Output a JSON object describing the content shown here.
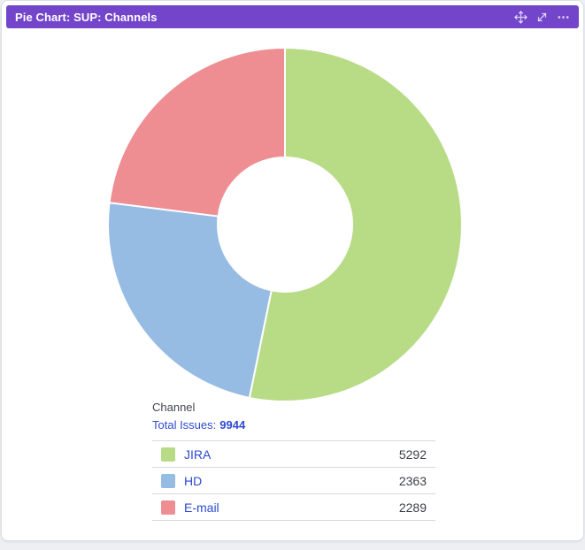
{
  "window": {
    "title": "Pie Chart: SUP: Channels"
  },
  "header": {
    "icons": [
      "move-icon",
      "expand-icon",
      "more-icon"
    ]
  },
  "colors": {
    "header_bg": "#7345cb",
    "link": "#2f49d1",
    "card_bg": "#ffffff",
    "page_bg": "#edeff3"
  },
  "summary": {
    "dimension_label": "Channel",
    "total_label": "Total Issues:",
    "total_value": "9944"
  },
  "chart_data": {
    "type": "pie",
    "subtype": "donut",
    "title": "SUP: Channels",
    "categories": [
      "JIRA",
      "HD",
      "E-mail"
    ],
    "values": [
      5292,
      2363,
      2289
    ],
    "colors": [
      "#b8db86",
      "#96bce3",
      "#ee8e93"
    ],
    "total": 9944,
    "start_angle_deg": 0,
    "direction": "clockwise",
    "donut_hole_ratio": 0.38,
    "legend_position": "bottom"
  }
}
